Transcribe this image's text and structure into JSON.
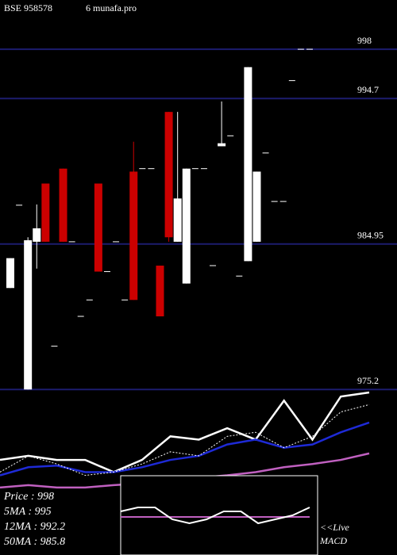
{
  "chart_data": {
    "type": "candlestick",
    "title": "BSE 958578",
    "subtitle": "6 munafa.pro",
    "ylim": [
      975,
      1001.3
    ],
    "yticks": [
      998,
      994.7,
      984.95,
      975.2
    ],
    "grid": true,
    "grid_color": "#1c1c6e",
    "up_color": "#ffffff",
    "down_color": "#cc0000",
    "open": [
      982.0,
      987.55,
      975.2,
      985.1,
      989.0,
      978.1,
      990.0,
      985.1,
      980.1,
      981.2,
      989.0,
      983.1,
      985.1,
      981.2,
      989.8,
      990.0,
      990.0,
      983.5,
      993.8,
      985.1,
      982.3,
      990.0,
      990.0,
      983.5,
      991.5,
      992.2,
      982.8,
      983.8,
      985.1,
      991.05,
      987.8,
      987.8,
      995.9,
      998,
      998
    ],
    "high": [
      984.0,
      987.55,
      985.4,
      987.6,
      989.0,
      978.1,
      990.0,
      985.1,
      980.1,
      981.2,
      989.0,
      983.1,
      985.1,
      981.2,
      991.8,
      990.0,
      990.0,
      983.5,
      993.8,
      993.8,
      990.0,
      990.0,
      990.0,
      983.5,
      994.5,
      992.2,
      982.8,
      996.8,
      989.8,
      991.05,
      987.8,
      987.8,
      995.9,
      998,
      998
    ],
    "low": [
      982.0,
      987.55,
      975.2,
      983.3,
      985.1,
      978.1,
      985.1,
      985.1,
      980.1,
      981.2,
      983.1,
      983.1,
      985.1,
      981.2,
      981.2,
      990.0,
      990.0,
      980.1,
      985.1,
      985.1,
      982.3,
      990.0,
      990.0,
      983.5,
      991.5,
      992.2,
      982.8,
      983.8,
      985.1,
      991.05,
      987.8,
      987.8,
      995.9,
      998,
      998
    ],
    "close": [
      984.0,
      987.55,
      985.2,
      986.0,
      985.1,
      978.1,
      985.1,
      985.1,
      980.1,
      981.2,
      983.1,
      983.1,
      985.1,
      981.2,
      981.2,
      990.0,
      990.0,
      980.1,
      985.4,
      988.0,
      990.0,
      990.0,
      990.0,
      983.5,
      991.7,
      992.2,
      982.8,
      996.8,
      989.8,
      991.05,
      987.8,
      987.8,
      995.9,
      998,
      998
    ],
    "ma_panel": {
      "ylim": [
        0,
        100
      ],
      "series": [
        {
          "color": "#ffffff",
          "values": [
            58.5,
            61,
            58.5,
            58.5,
            51,
            58.5,
            73,
            71,
            78,
            71,
            95,
            71,
            97.5,
            100
          ]
        },
        {
          "color": "#1e2ad6",
          "values": [
            49,
            54,
            55,
            51,
            51,
            54,
            58.5,
            61,
            68,
            71,
            66,
            68,
            75.5,
            81.5
          ]
        },
        {
          "color": "#c060c0",
          "values": [
            41.5,
            43,
            41.5,
            41.5,
            43,
            44,
            45.5,
            47.5,
            49,
            51,
            54,
            56,
            58.5,
            62.5
          ]
        },
        {
          "color": "#ffffff",
          "dashed": true,
          "values": [
            51,
            61,
            56,
            49,
            51,
            56,
            63.5,
            61,
            73,
            75.5,
            66,
            73,
            88,
            92.5
          ]
        }
      ],
      "labels": [
        "Price : 998",
        "5MA : 995",
        "12MA : 992.2",
        "50MA : 985.8"
      ]
    },
    "macd_panel": {
      "ylim": [
        0,
        100
      ],
      "series": [
        {
          "color": "#c060c0",
          "values": [
            48,
            48,
            48,
            48,
            48,
            48,
            48,
            48,
            48,
            48,
            48,
            48
          ]
        },
        {
          "color": "#ffffff",
          "values": [
            55,
            60,
            60,
            45,
            40,
            45,
            55,
            55,
            40,
            45,
            50,
            60
          ]
        }
      ],
      "live_label": "<<Live",
      "label": "MACD"
    }
  }
}
